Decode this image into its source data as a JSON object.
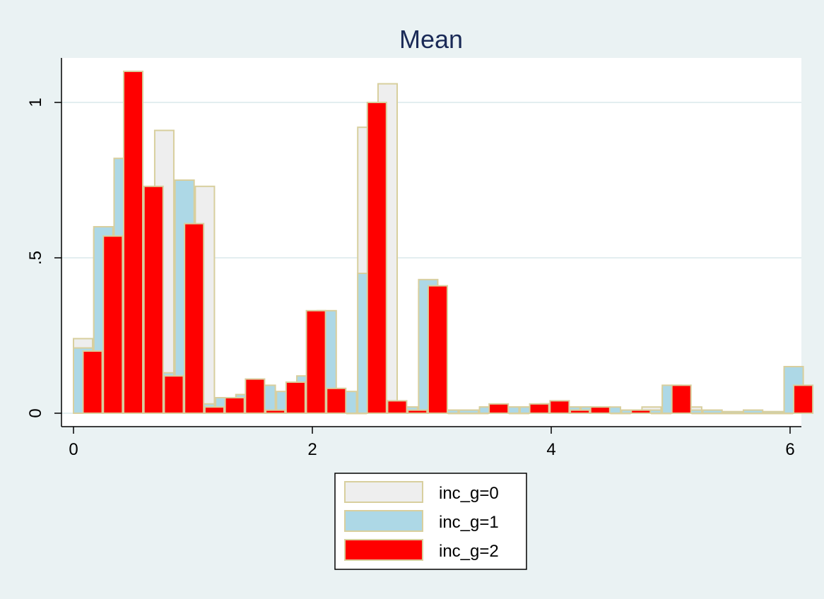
{
  "chart_data": {
    "type": "bar",
    "title": "Mean",
    "xlabel": "",
    "ylabel": "",
    "xlim": [
      0,
      6
    ],
    "ylim": [
      0,
      1.1
    ],
    "xticks": [
      {
        "value": 0,
        "label": "0"
      },
      {
        "value": 2,
        "label": "2"
      },
      {
        "value": 4,
        "label": "4"
      },
      {
        "value": 6,
        "label": "6"
      }
    ],
    "yticks": [
      {
        "value": 0,
        "label": "0"
      },
      {
        "value": 0.5,
        "label": ".5"
      },
      {
        "value": 1,
        "label": "1"
      }
    ],
    "grid": "horizontal",
    "legend_position": "bottom",
    "bar_width": 0.16,
    "series": [
      {
        "name": "inc_g=0",
        "color": "#eeeeee",
        "border": "#d8cf9e",
        "x": [
          0,
          0.17,
          0.34,
          0.51,
          0.68,
          0.85,
          1.02,
          1.19,
          1.36,
          1.53,
          1.7,
          1.87,
          2.04,
          2.21,
          2.38,
          2.55,
          2.72,
          2.89,
          3.06,
          3.23,
          3.4,
          3.57,
          3.74,
          3.91,
          4.08,
          4.25,
          4.42,
          4.59,
          4.76,
          4.93,
          5.1,
          5.27,
          5.44,
          5.61,
          5.78,
          5.95
        ],
        "values": [
          0.24,
          0.59,
          0.76,
          0.7,
          0.91,
          0.62,
          0.73,
          0.04,
          0.06,
          0.02,
          0.03,
          0.1,
          0.07,
          0.02,
          0.92,
          1.06,
          0.02,
          0.4,
          0.01,
          0.01,
          0.02,
          0.02,
          0.02,
          0.03,
          0.02,
          0.02,
          0.01,
          0.01,
          0.02,
          0.08,
          0.02,
          0.01,
          0.005,
          0.01,
          0.005,
          0.14
        ]
      },
      {
        "name": "inc_g=1",
        "color": "#add8e6",
        "border": "#d8cf9e",
        "x": [
          0,
          0.17,
          0.34,
          0.51,
          0.68,
          0.85,
          1.02,
          1.19,
          1.36,
          1.53,
          1.7,
          1.87,
          2.04,
          2.21,
          2.38,
          2.55,
          2.72,
          2.89,
          3.06,
          3.23,
          3.4,
          3.57,
          3.74,
          3.91,
          4.08,
          4.25,
          4.42,
          4.59,
          4.76,
          4.93,
          5.1,
          5.27,
          5.44,
          5.61,
          5.78,
          5.95
        ],
        "values": [
          0.21,
          0.6,
          0.82,
          0.71,
          0.13,
          0.75,
          0.03,
          0.05,
          0.06,
          0.09,
          0.07,
          0.12,
          0.33,
          0.07,
          0.45,
          0.03,
          0.02,
          0.43,
          0.01,
          0.01,
          0.02,
          0.02,
          0.02,
          0.03,
          0.02,
          0.02,
          0.02,
          0.01,
          0.01,
          0.09,
          0.01,
          0.01,
          0.005,
          0.01,
          0.005,
          0.15
        ]
      },
      {
        "name": "inc_g=2",
        "color": "#ff0000",
        "border": "#d8cf9e",
        "x": [
          0.08,
          0.25,
          0.42,
          0.59,
          0.76,
          0.93,
          1.1,
          1.27,
          1.44,
          1.61,
          1.78,
          1.95,
          2.12,
          2.29,
          2.46,
          2.63,
          2.8,
          2.97,
          3.14,
          3.31,
          3.48,
          3.65,
          3.82,
          3.99,
          4.16,
          4.33,
          4.5,
          4.67,
          4.84,
          5.01,
          5.18,
          5.35,
          5.52,
          5.69,
          5.86,
          6.03
        ],
        "values": [
          0.2,
          0.57,
          1.1,
          0.73,
          0.12,
          0.61,
          0.02,
          0.05,
          0.11,
          0.01,
          0.1,
          0.33,
          0.08,
          0,
          1.0,
          0.04,
          0.01,
          0.41,
          0,
          0,
          0.03,
          0,
          0.03,
          0.04,
          0.01,
          0.02,
          0,
          0.01,
          0,
          0.09,
          0,
          0,
          0,
          0,
          0,
          0.09
        ]
      }
    ]
  }
}
